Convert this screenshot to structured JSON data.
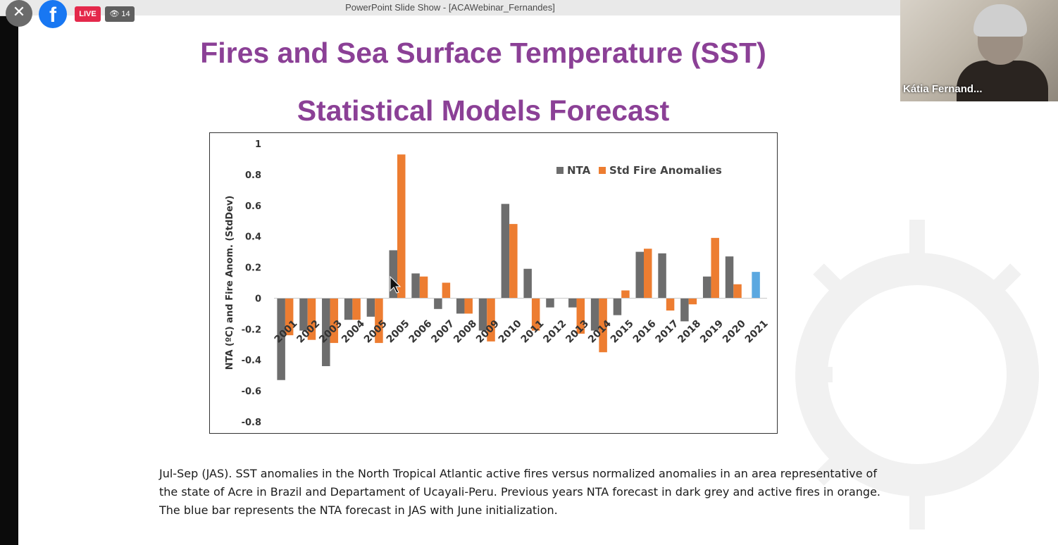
{
  "window": {
    "title": "PowerPoint Slide Show - [ACAWebinar_Fernandes]"
  },
  "stream": {
    "close_icon": "close-icon",
    "facebook_icon": "facebook-icon",
    "live_label": "LIVE",
    "viewer_count": "👁 14"
  },
  "video": {
    "participant_name": "Kátia Fernand..."
  },
  "slide": {
    "title_line1": "Fires and Sea Surface Temperature (SST)",
    "title_line2": "Statistical Models Forecast",
    "caption_lines": [
      "Jul-Sep (JAS). SST anomalies in the North Tropical Atlantic active fires versus normalized anomalies in an area representative of",
      "the state of Acre in Brazil and Departament of Ucayali-Peru. Previous years NTA forecast in dark grey  and active fires in orange.",
      "The blue bar represents the NTA forecast in JAS with June initialization."
    ]
  },
  "colors": {
    "title": "#8b4096",
    "nta": "#6d6d6d",
    "fire": "#ed7d31",
    "forecast": "#5ba8e0"
  },
  "chart_data": {
    "type": "bar",
    "ylabel": "NTA (ºC) and Fire Anom. (StdDev)",
    "ylim": [
      -0.8,
      1
    ],
    "yticks": [
      1,
      0.8,
      0.6,
      0.4,
      0.2,
      0,
      -0.2,
      -0.4,
      -0.6,
      -0.8
    ],
    "ytick_labels": [
      "1",
      "0.8",
      "0.6",
      "0.4",
      "0.2",
      "0",
      "-0.2",
      "-0.4",
      "-0.6",
      "-0.8"
    ],
    "grid": false,
    "legend_position": "top-right",
    "categories": [
      "2001",
      "2002",
      "2003",
      "2004",
      "2005",
      "2005",
      "2006",
      "2007",
      "2008",
      "2009",
      "2010",
      "2011",
      "2012",
      "2013",
      "2014",
      "2015",
      "2016",
      "2017",
      "2018",
      "2019",
      "2020",
      "2021"
    ],
    "category_labels": [
      "2001",
      "2002",
      "2003",
      "2004",
      "2005",
      "2005",
      "2006",
      "2007",
      "2008",
      "2009",
      "2010",
      "2011",
      "2012",
      "2013",
      "2014",
      "2015",
      "2016",
      "2017",
      "2018",
      "2019",
      "2020",
      "2021"
    ],
    "series": [
      {
        "name": "NTA",
        "values": [
          -0.53,
          -0.21,
          -0.44,
          -0.14,
          -0.12,
          0.31,
          0.16,
          -0.07,
          -0.1,
          -0.21,
          0.61,
          0.19,
          -0.06,
          -0.06,
          -0.21,
          -0.11,
          0.3,
          0.29,
          -0.15,
          0.14,
          0.27,
          null
        ]
      },
      {
        "name": "Std Fire Anomalies",
        "values": [
          -0.24,
          -0.27,
          -0.29,
          -0.14,
          -0.29,
          0.93,
          0.14,
          0.1,
          -0.1,
          -0.28,
          0.48,
          -0.21,
          null,
          -0.23,
          -0.35,
          0.05,
          0.32,
          -0.08,
          -0.04,
          0.39,
          0.09,
          null
        ]
      },
      {
        "values": [
          null,
          null,
          null,
          null,
          null,
          null,
          null,
          null,
          null,
          null,
          null,
          null,
          null,
          null,
          null,
          null,
          null,
          null,
          null,
          null,
          null,
          0.17
        ]
      }
    ],
    "legend": [
      "NTA",
      "Std Fire Anomalies"
    ]
  }
}
